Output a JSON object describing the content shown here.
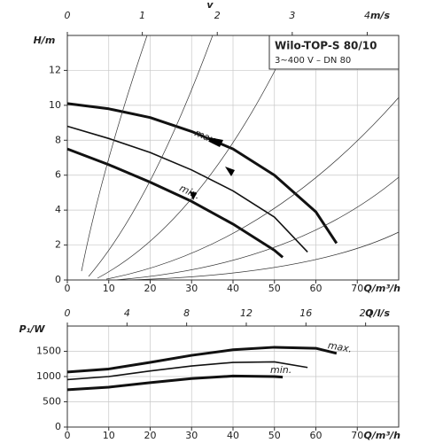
{
  "chart_data": [
    {
      "type": "line",
      "title": "Wilo-TOP-S 80/10",
      "subtitle": "3~400 V – DN 80",
      "x_label": "Q/m³/h",
      "y_label": "H/m",
      "x2_label": "v",
      "x2_unit": "m/s",
      "xlim": [
        0,
        80
      ],
      "xticks": [
        0,
        10,
        20,
        30,
        40,
        50,
        60,
        70
      ],
      "x2lim": [
        0,
        4.42
      ],
      "x2ticks": [
        0,
        1,
        2,
        3,
        4
      ],
      "ylim": [
        0,
        14
      ],
      "yticks": [
        0,
        2,
        4,
        6,
        8,
        10,
        12
      ],
      "grid": true,
      "series": [
        {
          "name": "max.",
          "color": "#111",
          "x": [
            0,
            10,
            20,
            30,
            40,
            50,
            60,
            65
          ],
          "values": [
            10.1,
            9.8,
            9.3,
            8.5,
            7.5,
            6.0,
            3.9,
            2.1
          ]
        },
        {
          "color": "#111",
          "x": [
            0,
            10,
            20,
            30,
            40,
            50,
            58
          ],
          "values": [
            8.8,
            8.1,
            7.3,
            6.3,
            5.1,
            3.6,
            1.6
          ]
        },
        {
          "name": "min.",
          "color": "#111",
          "x": [
            0,
            10,
            20,
            30,
            40,
            50,
            52
          ],
          "values": [
            7.5,
            6.6,
            5.6,
            4.5,
            3.2,
            1.7,
            1.3
          ]
        }
      ]
    },
    {
      "type": "line",
      "x_label": "Q/m³/h",
      "y_label": "P₁/W",
      "x2_label": "Q/l/s",
      "xlim": [
        0,
        80
      ],
      "xticks": [
        0,
        10,
        20,
        30,
        40,
        50,
        60,
        70
      ],
      "x2lim": [
        0,
        22.22
      ],
      "x2ticks": [
        0,
        4,
        8,
        12,
        16,
        20
      ],
      "ylim": [
        0,
        2000
      ],
      "yticks": [
        0,
        500,
        1000,
        1500
      ],
      "grid": true,
      "series": [
        {
          "name": "max.",
          "color": "#111",
          "x": [
            0,
            10,
            20,
            30,
            40,
            50,
            60,
            65
          ],
          "values": [
            1090,
            1150,
            1280,
            1420,
            1530,
            1580,
            1560,
            1460
          ]
        },
        {
          "color": "#111",
          "x": [
            0,
            10,
            20,
            30,
            40,
            50,
            58
          ],
          "values": [
            940,
            1000,
            1110,
            1210,
            1280,
            1290,
            1180
          ]
        },
        {
          "name": "min.",
          "color": "#111",
          "x": [
            0,
            10,
            20,
            30,
            40,
            50,
            52
          ],
          "values": [
            740,
            790,
            880,
            960,
            1010,
            1000,
            990
          ]
        }
      ]
    }
  ]
}
